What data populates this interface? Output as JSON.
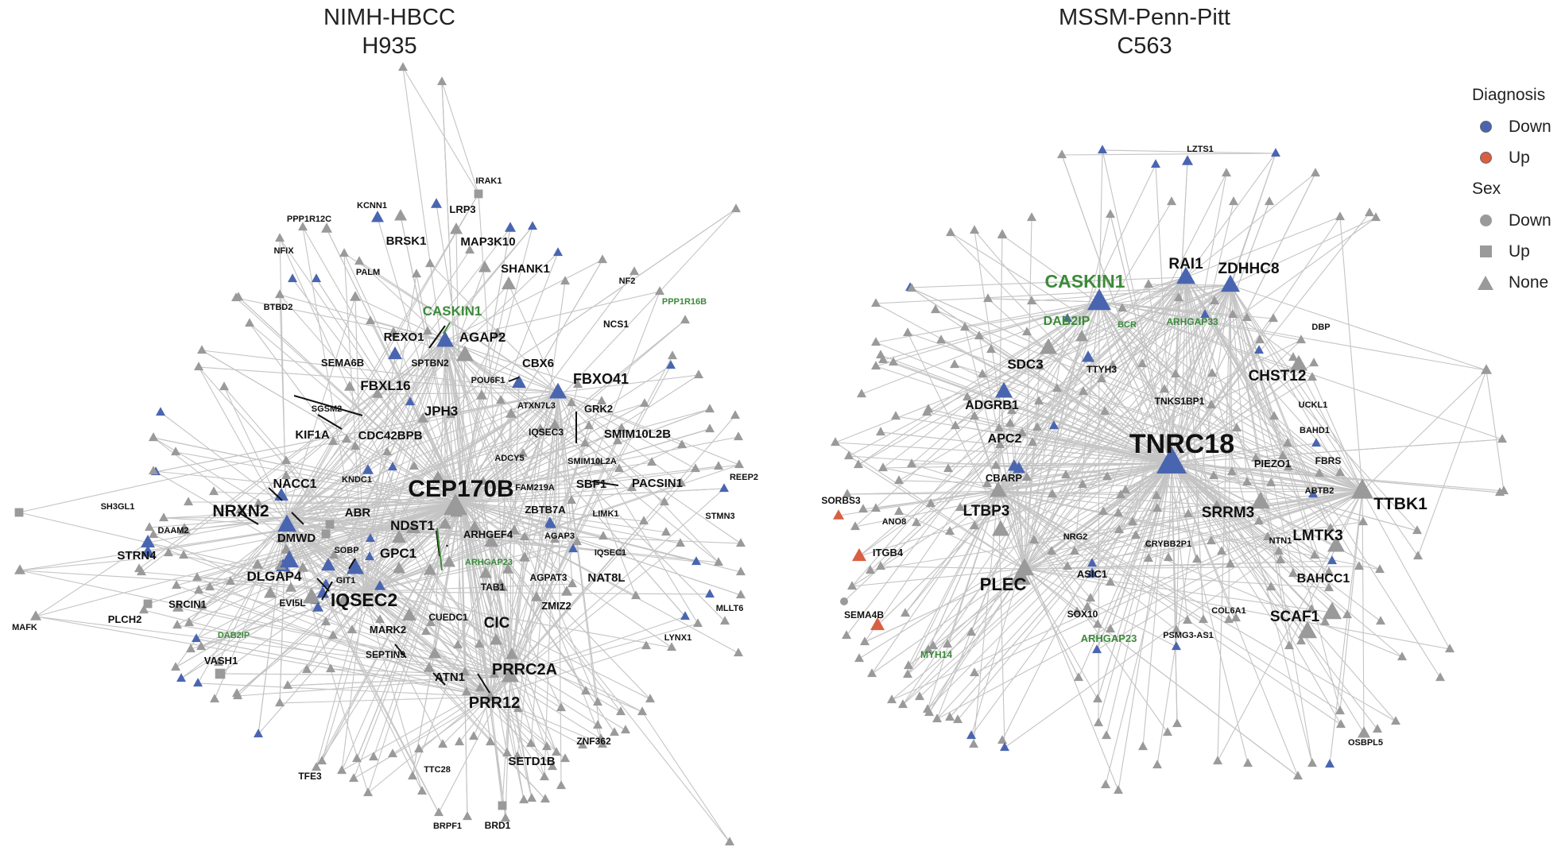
{
  "panels": [
    {
      "title_line1": "NIMH-HBCC",
      "title_line2": "H935"
    },
    {
      "title_line1": "MSSM-Penn-Pitt",
      "title_line2": "C563"
    }
  ],
  "legend": {
    "diagnosis_title": "Diagnosis",
    "diagnosis_items": [
      {
        "label": "Down",
        "color": "#4a65b0"
      },
      {
        "label": "Up",
        "color": "#d95f42"
      }
    ],
    "sex_title": "Sex",
    "sex_items": [
      {
        "label": "Down",
        "shape": "circle"
      },
      {
        "label": "Up",
        "shape": "square"
      },
      {
        "label": "None",
        "shape": "triangle"
      }
    ]
  },
  "colors": {
    "down": "#4a65b0",
    "up": "#d95f42",
    "none": "#9a9a9a",
    "edge": "#c4c4c4",
    "green_label": "#3c8a3a"
  },
  "gene_labels": {
    "left": [
      "IRAK1",
      "KCNN1",
      "LRP3",
      "PPP1R12C",
      "NFIX",
      "BRSK1",
      "MAP3K10",
      "SHANK1",
      "PALM",
      "BTBD2",
      "NF2",
      "PPP1R16B",
      "NCS1",
      "CASKIN1",
      "REXO1",
      "AGAP2",
      "SEMA6B",
      "SPTBN2",
      "CBX6",
      "POU6F1",
      "FBXO41",
      "FBXL16",
      "SGSM2",
      "ATXN7L3",
      "GRK2",
      "JPH3",
      "KIF1A",
      "CDC42BPB",
      "IQSEC3",
      "SMIM10L2B",
      "ADCY5",
      "SMIM10L2A",
      "REEP2",
      "KNDC1",
      "NACC1",
      "CEP170B",
      "FAM219A",
      "SBF1",
      "PACSIN1",
      "SH3GL1",
      "NRXN2",
      "ABR",
      "LIMK1",
      "ZBTB7A",
      "STMN3",
      "DAAM2",
      "DMWD",
      "NDST1",
      "ARHGEF4",
      "AGAP3",
      "STRN4",
      "SOBP",
      "GPC1",
      "ARHGAP23",
      "IQSEC1",
      "DLGAP4",
      "GIT1",
      "AGPAT3",
      "NAT8L",
      "TAB1",
      "EVI5L",
      "IQSEC2",
      "ZMIZ2",
      "MLLT6",
      "SRCIN1",
      "MAFK",
      "PLCH2",
      "DAB2IP",
      "MARK2",
      "CUEDC1",
      "CIC",
      "LYNX1",
      "VASH1",
      "SEPTIN9",
      "ATN1",
      "PRRC2A",
      "PRR12",
      "ZNF362",
      "SETD1B",
      "TFE3",
      "TTC28",
      "BRPF1",
      "BRD1"
    ],
    "right": [
      "LZTS1",
      "CASKIN1",
      "RAI1",
      "ZDHHC8",
      "DAB2IP",
      "BCR",
      "ARHGAP33",
      "DBP",
      "SDC3",
      "TTYH3",
      "CHST12",
      "ADGRB1",
      "TNKS1BP1",
      "UCKL1",
      "APC2",
      "TNRC18",
      "BAHD1",
      "PIEZO1",
      "FBRS",
      "CBARP",
      "ABTB2",
      "SORBS3",
      "ANO8",
      "LTBP3",
      "SRRM3",
      "TTBK1",
      "NRG2",
      "CRYBB2P1",
      "NTN1",
      "LMTK3",
      "ITGB4",
      "ASIC1",
      "BAHCC1",
      "PLEC",
      "SOX10",
      "COL6A1",
      "SCAF1",
      "SEMA4B",
      "ARHGAP23",
      "PSMG3-AS1",
      "MYH14",
      "OSBPL5"
    ]
  }
}
